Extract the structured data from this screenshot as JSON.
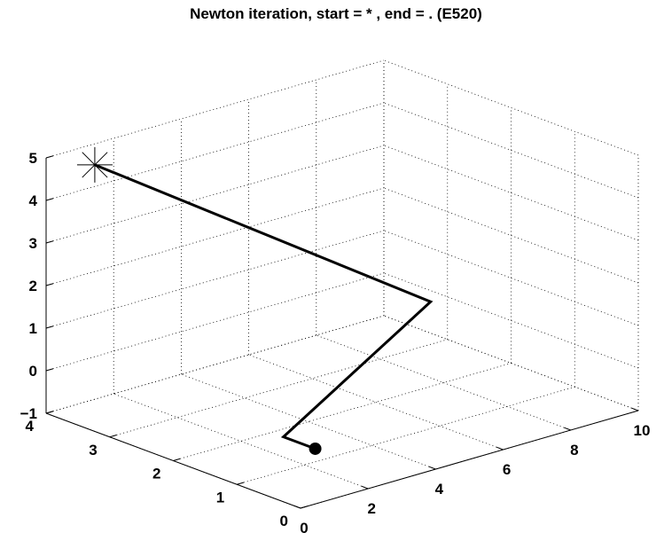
{
  "chart_data": {
    "type": "line3d",
    "title": "Newton iteration, start = * , end = . (E520)",
    "xlabel": "",
    "ylabel": "",
    "zlabel": "",
    "xlim": [
      0,
      10
    ],
    "ylim": [
      0,
      4
    ],
    "zlim": [
      -1,
      5
    ],
    "x_ticks": [
      "0",
      "2",
      "4",
      "6",
      "8",
      "10"
    ],
    "y_ticks": [
      "0",
      "1",
      "2",
      "3",
      "4"
    ],
    "z_ticks": [
      "-1",
      "0",
      "1",
      "2",
      "3",
      "4",
      "5"
    ],
    "grid": true,
    "series": [
      {
        "points": [
          {
            "x": 0.5,
            "y": 3.5,
            "z": 5.0
          },
          {
            "x": 9.5,
            "y": 3.0,
            "z": 0.0
          },
          {
            "x": 1.0,
            "y": 0.8,
            "z": 0.0
          },
          {
            "x": 1.0,
            "y": 0.3,
            "z": 0.0
          }
        ],
        "start_marker": "asterisk",
        "end_marker": "dot"
      }
    ]
  }
}
